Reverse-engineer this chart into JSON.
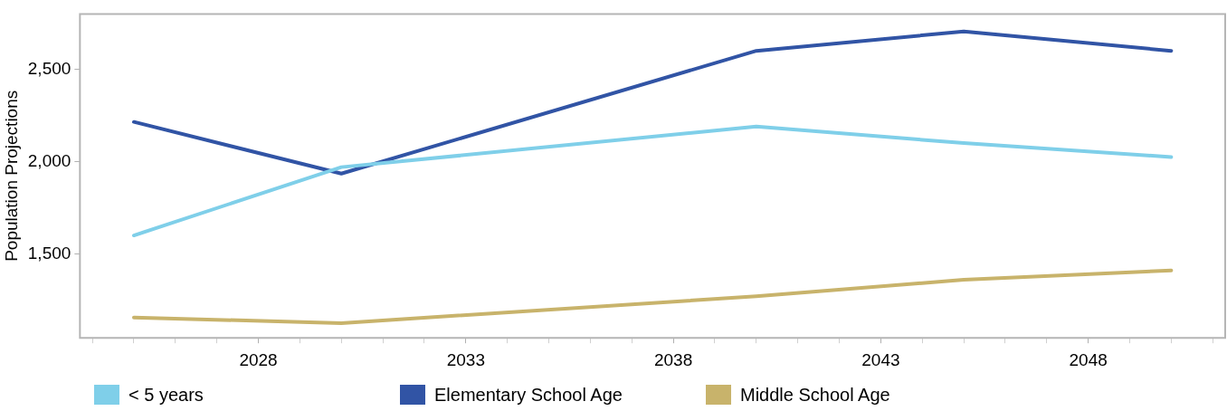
{
  "chart_data": {
    "type": "line",
    "ylabel": "Population Projections",
    "x": [
      2025,
      2030,
      2040,
      2045,
      2050
    ],
    "series": [
      {
        "name": "< 5 years",
        "color": "#7fcfe9",
        "values": [
          1600,
          1970,
          2190,
          2100,
          2025
        ]
      },
      {
        "name": "Elementary School Age",
        "color": "#3154a5",
        "values": [
          2215,
          1935,
          2600,
          2705,
          2600
        ]
      },
      {
        "name": "Middle School Age",
        "color": "#c8b36b",
        "values": [
          1155,
          1125,
          1270,
          1360,
          1410
        ]
      }
    ],
    "xlim": [
      2023.7,
      2051.3
    ],
    "xticks": [
      {
        "value": 2024,
        "label": null
      },
      {
        "value": 2025,
        "label": null
      },
      {
        "value": 2026,
        "label": null
      },
      {
        "value": 2027,
        "label": null
      },
      2028,
      {
        "value": 2029,
        "label": null
      },
      {
        "value": 2030,
        "label": null
      },
      {
        "value": 2031,
        "label": null
      },
      {
        "value": 2032,
        "label": null
      },
      2033,
      {
        "value": 2034,
        "label": null
      },
      {
        "value": 2035,
        "label": null
      },
      {
        "value": 2036,
        "label": null
      },
      {
        "value": 2037,
        "label": null
      },
      2038,
      {
        "value": 2039,
        "label": null
      },
      {
        "value": 2040,
        "label": null
      },
      {
        "value": 2041,
        "label": null
      },
      {
        "value": 2042,
        "label": null
      },
      2043,
      {
        "value": 2044,
        "label": null
      },
      {
        "value": 2045,
        "label": null
      },
      {
        "value": 2046,
        "label": null
      },
      {
        "value": 2047,
        "label": null
      },
      2048,
      {
        "value": 2049,
        "label": null
      },
      {
        "value": 2050,
        "label": null
      },
      {
        "value": 2051,
        "label": null
      }
    ],
    "ylim": [
      1045,
      2800
    ],
    "yticks": [
      {
        "value": 1500,
        "label": "1,500"
      },
      {
        "value": 2000,
        "label": "2,000"
      },
      {
        "value": 2500,
        "label": "2,500"
      }
    ],
    "grid": false,
    "legend": "bottom",
    "marker": "none",
    "line_style": "solid"
  }
}
